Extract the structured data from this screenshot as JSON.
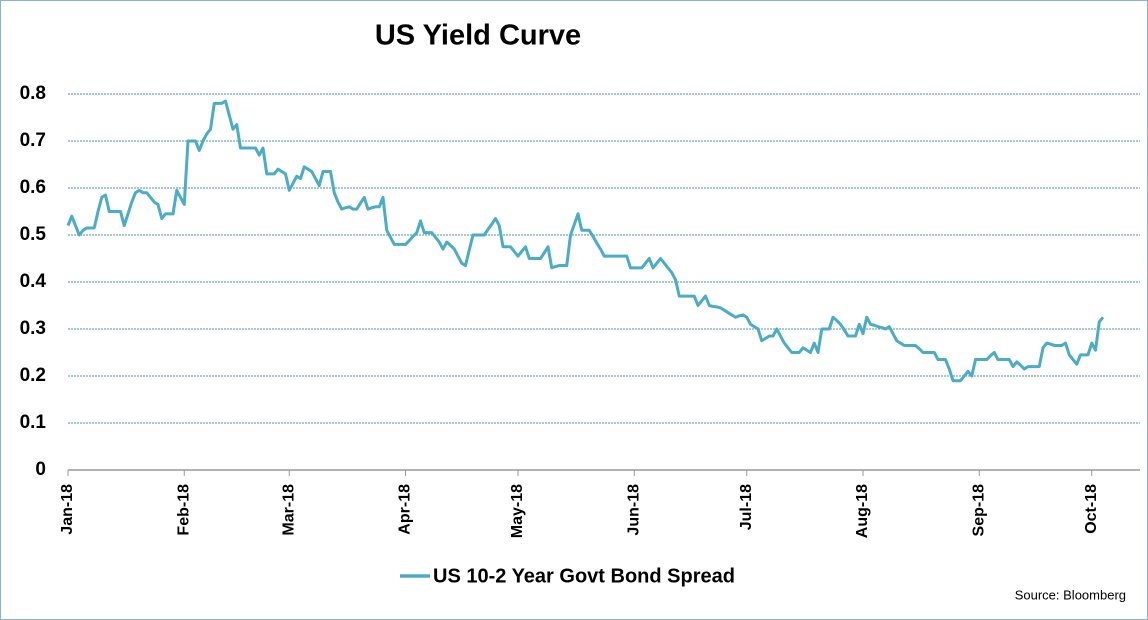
{
  "chart_data": {
    "type": "line",
    "title": "US Yield Curve",
    "source": "Source:  Bloomberg",
    "categories": [
      "Jan-18",
      null,
      null,
      null,
      null,
      null,
      null,
      null,
      null,
      null,
      null,
      null,
      null,
      null,
      null,
      null,
      null,
      null,
      null,
      null,
      null,
      null,
      null,
      null,
      null,
      null,
      null,
      null,
      null,
      null,
      null,
      "Feb-18",
      null,
      null,
      null,
      null,
      null,
      null,
      null,
      null,
      null,
      null,
      null,
      null,
      null,
      null,
      null,
      null,
      null,
      null,
      null,
      null,
      null,
      null,
      null,
      null,
      null,
      null,
      null,
      "Mar-18",
      null,
      null,
      null,
      null,
      null,
      null,
      null,
      null,
      null,
      null,
      null,
      null,
      null,
      null,
      null,
      null,
      null,
      null,
      null,
      null,
      null,
      null,
      null,
      null,
      null,
      null,
      null,
      null,
      null,
      null,
      "Apr-18",
      null,
      null,
      null,
      null,
      null,
      null,
      null,
      null,
      null,
      null,
      null,
      null,
      null,
      null,
      null,
      null,
      null,
      null,
      null,
      null,
      null,
      null,
      null,
      null,
      null,
      null,
      null,
      null,
      null,
      "May-18",
      null,
      null,
      null,
      null,
      null,
      null,
      null,
      null,
      null,
      null,
      null,
      null,
      null,
      null,
      null,
      null,
      null,
      null,
      null,
      null,
      null,
      null,
      null,
      null,
      null,
      null,
      null,
      null,
      null,
      null,
      "Jun-18",
      null,
      null,
      null,
      null,
      null,
      null,
      null,
      null,
      null,
      null,
      null,
      null,
      null,
      null,
      null,
      null,
      null,
      null,
      null,
      null,
      null,
      null,
      null,
      null,
      null,
      null,
      null,
      null,
      null,
      "Jul-18",
      null,
      null,
      null,
      null,
      null,
      null,
      null,
      null,
      null,
      null,
      null,
      null,
      null,
      null,
      null,
      null,
      null,
      null,
      null,
      null,
      null,
      null,
      null,
      null,
      null,
      null,
      null,
      null,
      null,
      null,
      "Aug-18",
      null,
      null,
      null,
      null,
      null,
      null,
      null,
      null,
      null,
      null,
      null,
      null,
      null,
      null,
      null,
      null,
      null,
      null,
      null,
      null,
      null,
      null,
      null,
      null,
      null,
      null,
      null,
      null,
      null,
      null,
      "Sep-18",
      null,
      null,
      null,
      null,
      null,
      null,
      null,
      null,
      null,
      null,
      null,
      null,
      null,
      null,
      null,
      null,
      null,
      null,
      null,
      null,
      null,
      null,
      null,
      null,
      null,
      null,
      null,
      null,
      null,
      "Oct-18",
      null,
      null,
      null
    ],
    "series": [
      {
        "name": "US 10-2 Year Govt Bond Spread",
        "color": "#4bacc6",
        "values": [
          0.52,
          0.54,
          0.52,
          0.5,
          0.51,
          0.515,
          0.515,
          0.515,
          0.55,
          0.58,
          0.585,
          0.55,
          0.55,
          0.55,
          0.55,
          0.52,
          0.545,
          0.57,
          0.59,
          0.595,
          0.59,
          0.59,
          0.58,
          0.57,
          0.565,
          0.535,
          0.545,
          0.545,
          0.545,
          0.595,
          0.58,
          0.565,
          0.7,
          0.7,
          0.7,
          0.68,
          0.7,
          0.715,
          0.725,
          0.78,
          0.78,
          0.78,
          0.785,
          0.755,
          0.725,
          0.735,
          0.685,
          0.685,
          0.685,
          0.685,
          0.685,
          0.67,
          0.685,
          0.63,
          0.63,
          0.63,
          0.64,
          0.635,
          0.63,
          0.595,
          0.61,
          0.625,
          0.62,
          0.645,
          0.64,
          0.635,
          0.62,
          0.605,
          0.635,
          0.635,
          0.635,
          0.59,
          0.57,
          0.555,
          0.558,
          0.56,
          0.555,
          0.555,
          0.568,
          0.58,
          0.555,
          0.558,
          0.56,
          0.56,
          0.58,
          0.51,
          0.495,
          0.48,
          0.48,
          0.48,
          0.48,
          0.488,
          0.497,
          0.505,
          0.53,
          0.505,
          0.505,
          0.505,
          0.495,
          0.485,
          0.47,
          0.485,
          0.478,
          0.47,
          0.455,
          0.44,
          0.435,
          0.468,
          0.5,
          0.5,
          0.5,
          0.5,
          0.512,
          0.523,
          0.535,
          0.52,
          0.475,
          0.475,
          0.475,
          0.465,
          0.455,
          0.465,
          0.475,
          0.45,
          0.45,
          0.45,
          0.45,
          0.462,
          0.475,
          0.43,
          0.433,
          0.435,
          0.435,
          0.435,
          0.5,
          0.522,
          0.545,
          0.51,
          0.51,
          0.51,
          0.497,
          0.483,
          0.47,
          0.455,
          0.455,
          0.455,
          0.455,
          0.455,
          0.455,
          0.455,
          0.43,
          0.43,
          0.43,
          0.43,
          0.44,
          0.45,
          0.43,
          0.44,
          0.45,
          0.44,
          0.43,
          0.42,
          0.405,
          0.37,
          0.37,
          0.37,
          0.37,
          0.37,
          0.35,
          0.36,
          0.37,
          0.35,
          0.348,
          0.347,
          0.345,
          0.34,
          0.335,
          0.33,
          0.325,
          0.328,
          0.33,
          0.325,
          0.31,
          0.305,
          0.3,
          0.275,
          0.28,
          0.285,
          0.285,
          0.3,
          0.285,
          0.27,
          0.26,
          0.25,
          0.25,
          0.25,
          0.26,
          0.255,
          0.25,
          0.27,
          0.25,
          0.3,
          0.3,
          0.3,
          0.325,
          0.318,
          0.31,
          0.298,
          0.285,
          0.285,
          0.285,
          0.31,
          0.29,
          0.325,
          0.31,
          0.308,
          0.305,
          0.303,
          0.3,
          0.305,
          0.29,
          0.275,
          0.27,
          0.265,
          0.265,
          0.265,
          0.265,
          0.258,
          0.25,
          0.25,
          0.25,
          0.25,
          0.235,
          0.235,
          0.235,
          0.215,
          0.19,
          0.19,
          0.19,
          0.2,
          0.21,
          0.2,
          0.235,
          0.235,
          0.235,
          0.235,
          0.243,
          0.25,
          0.235,
          0.235,
          0.235,
          0.235,
          0.22,
          0.23,
          0.223,
          0.215,
          0.22,
          0.22,
          0.22,
          0.22,
          0.26,
          0.27,
          0.268,
          0.265,
          0.265,
          0.265,
          0.27,
          0.245,
          0.235,
          0.225,
          0.245,
          0.245,
          0.245,
          0.27,
          0.255,
          0.315,
          0.325
        ]
      }
    ],
    "ylim": [
      0,
      0.8
    ],
    "yticks": [
      0,
      0.1,
      0.2,
      0.3,
      0.4,
      0.5,
      0.6,
      0.7,
      0.8
    ],
    "grid": true
  }
}
